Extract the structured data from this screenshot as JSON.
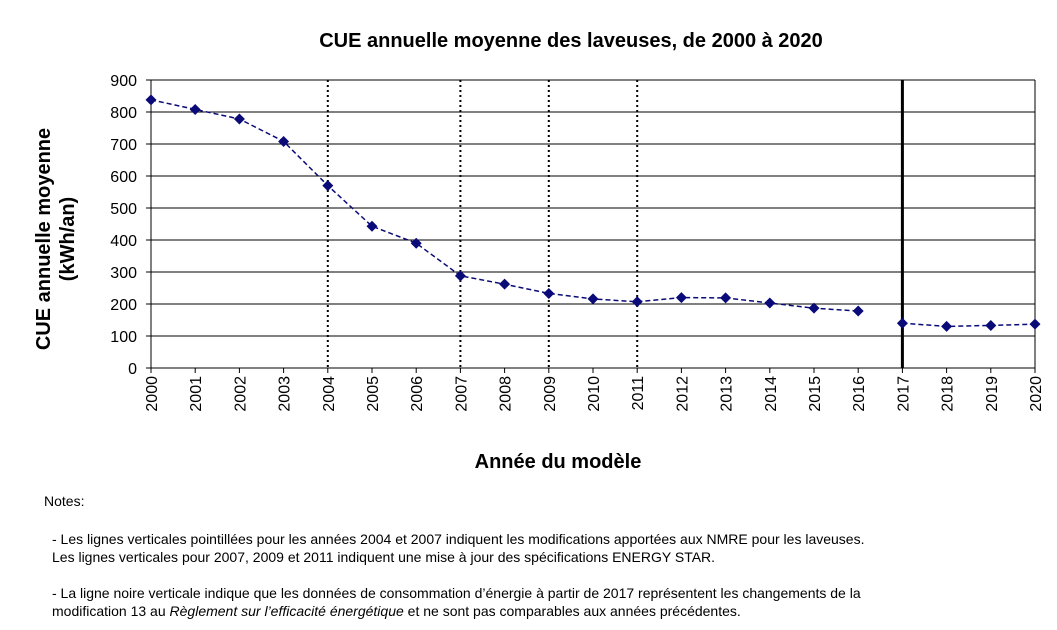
{
  "chart_data": {
    "type": "line",
    "title": "CUE annuelle moyenne des laveuses, de 2000 à 2020",
    "xlabel": "Année du modèle",
    "ylabel_line1": "CUE annuelle moyenne",
    "ylabel_line2": "(kWh/an)",
    "ylim": [
      0,
      900
    ],
    "yticks": [
      0,
      100,
      200,
      300,
      400,
      500,
      600,
      700,
      800,
      900
    ],
    "grid": true,
    "categories": [
      "2000",
      "2001",
      "2002",
      "2003",
      "2004",
      "2005",
      "2006",
      "2007",
      "2008",
      "2009",
      "2010",
      "2011",
      "2012",
      "2013",
      "2014",
      "2015",
      "2016",
      "2017",
      "2018",
      "2019",
      "2020"
    ],
    "series": [
      {
        "values_before_break": [
          838,
          808,
          778,
          708,
          570,
          443,
          390,
          288,
          262,
          233,
          216,
          207,
          220,
          219,
          203,
          187,
          178
        ],
        "values_after_break": [
          140,
          130,
          133,
          137
        ],
        "color": "#0a0a78"
      }
    ],
    "dotted_vertical_lines": [
      "2004",
      "2007",
      "2009",
      "2011"
    ],
    "solid_vertical_line": "2017"
  },
  "notes": {
    "heading": "Notes:",
    "note1_line1": "- Les lignes verticales pointillées pour les années 2004 et 2007 indiquent les modifications apportées aux NMRE pour les laveuses.",
    "note1_line2": "Les lignes verticales pour 2007, 2009 et 2011 indiquent une mise à jour des spécifications ENERGY STAR.",
    "note2_line1": "- La ligne noire verticale indique que les données de consommation d’énergie à partir de 2017 représentent les changements de la",
    "note2_line2_a": "modification 13 au ",
    "note2_line2_italic": "Règlement sur l’efficacité énergétique",
    "note2_line2_b": " et ne sont pas comparables aux années précédentes."
  }
}
